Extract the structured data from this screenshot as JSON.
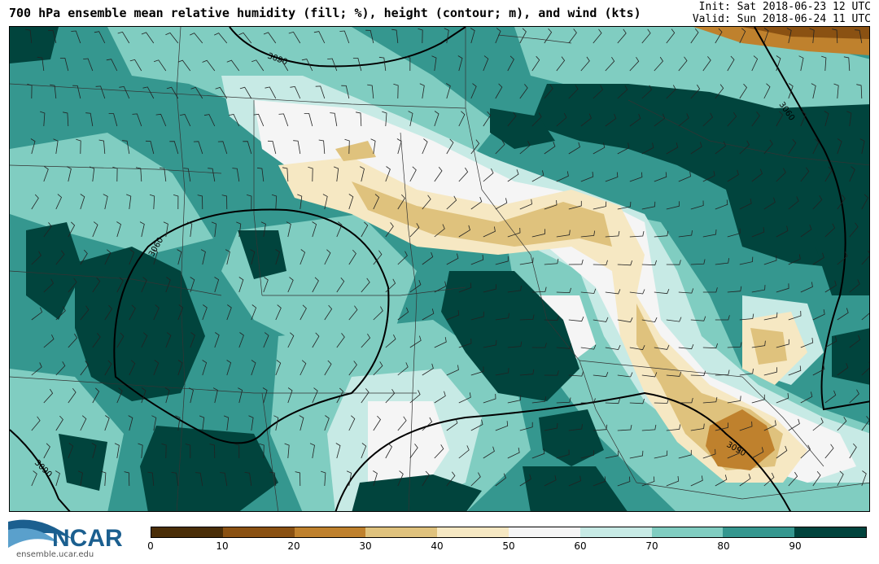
{
  "header": {
    "title": "700 hPa ensemble mean relative humidity (fill; %), height (contour; m), and wind (kts)",
    "init": "Init: Sat 2018-06-23 12 UTC",
    "valid": "Valid: Sun 2018-06-24 11 UTC"
  },
  "logo": {
    "text": "NCAR",
    "url": "ensemble.ucar.edu",
    "color": "#1b5f8f"
  },
  "colorbar": {
    "ticks": [
      "0",
      "10",
      "20",
      "30",
      "40",
      "50",
      "60",
      "70",
      "80",
      "90"
    ],
    "colors": [
      "#4a2e08",
      "#8a5112",
      "#bf812d",
      "#dfc27d",
      "#f6e8c3",
      "#f5f5f5",
      "#c7eae5",
      "#80cdc1",
      "#35978f",
      "#01443d"
    ]
  },
  "map": {
    "contour_labels": [
      "3090",
      "3060",
      "3060",
      "3090",
      "3090"
    ]
  }
}
